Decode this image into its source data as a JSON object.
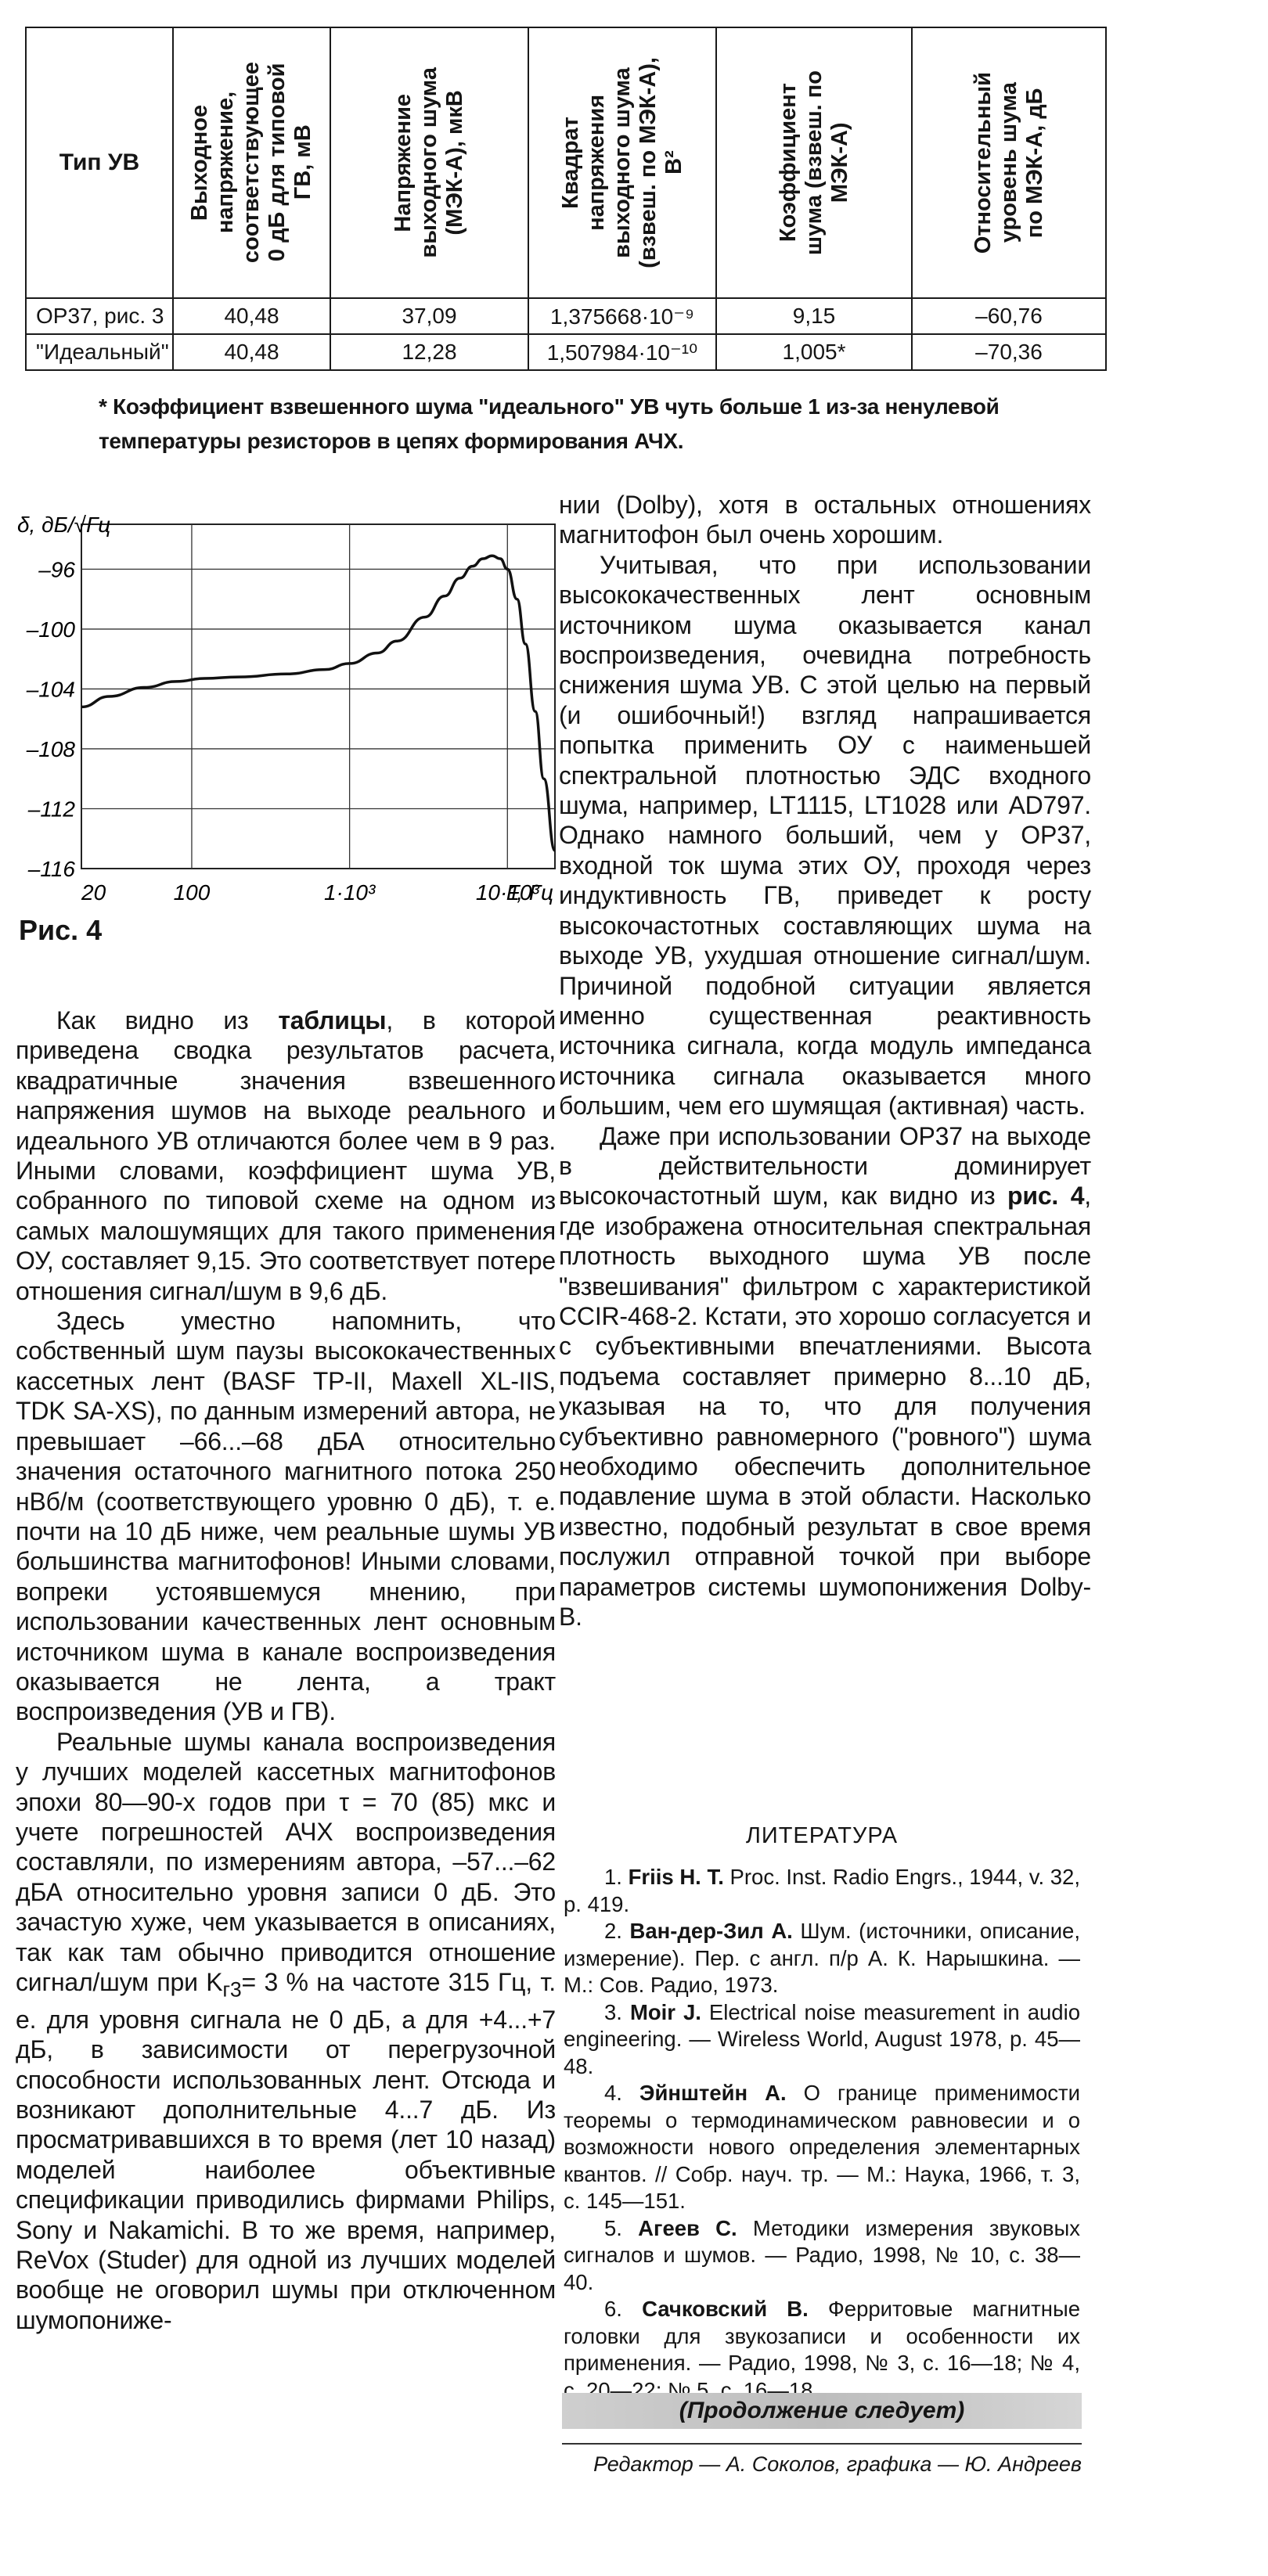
{
  "table": {
    "headers": [
      "Тип УВ",
      "Выходное\nнапряжение,\nсоответствующее\n0 дБ для типовой\nГВ, мВ",
      "Напряжение\nвыходного шума\n(МЭК-А), мкВ",
      "Квадрат\nнапряжения\nвыходного шума\n(взвеш. по МЭК-А),\nВ²",
      "Коэффициент\nшума (взвеш. по\nМЭК-А)",
      "Относительный\nуровень шума\nпо МЭК-А, дБ"
    ],
    "rows": [
      [
        "OP37, рис. 3",
        "40,48",
        "37,09",
        "1,375668·10⁻⁹",
        "9,15",
        "–60,76"
      ],
      [
        "\"Идеальный\"",
        "40,48",
        "12,28",
        "1,507984·10⁻¹⁰",
        "1,005*",
        "–70,36"
      ]
    ],
    "footnote": "* Коэффициент взвешенного шума \"идеального\" УВ чуть больше 1 из-за ненулевой температуры резисторов в цепях формирования АЧХ."
  },
  "figure": {
    "caption": "Рис. 4"
  },
  "chart_data": {
    "type": "line",
    "ylabel": "δ, дБ/√Гц",
    "xlabel": "F, Гц",
    "x_scale": "log",
    "x_ticks": [
      "20",
      "100",
      "1·10³",
      "10·10³"
    ],
    "x_tick_values": [
      20,
      100,
      1000,
      10000
    ],
    "y_ticks": [
      "–96",
      "–100",
      "–104",
      "–108",
      "–112",
      "–116"
    ],
    "y_tick_values": [
      -96,
      -100,
      -104,
      -108,
      -112,
      -116
    ],
    "xlim": [
      20,
      20000
    ],
    "ylim": [
      -116,
      -93
    ],
    "grid": true,
    "series": [
      {
        "x": [
          20,
          30,
          50,
          80,
          120,
          200,
          400,
          700,
          1000,
          1500,
          2000,
          3000,
          4000,
          5000,
          6000,
          7000,
          8000,
          9000,
          10000,
          11500,
          13000,
          15000,
          17000,
          20000
        ],
        "y": [
          -105.2,
          -104.5,
          -103.9,
          -103.5,
          -103.3,
          -103.2,
          -103.0,
          -102.7,
          -102.3,
          -101.6,
          -100.8,
          -99.2,
          -97.8,
          -96.6,
          -95.8,
          -95.3,
          -95.1,
          -95.3,
          -96.0,
          -98.0,
          -101.0,
          -105.5,
          -110.0,
          -114.8
        ]
      }
    ]
  },
  "columns": {
    "right_top": [
      {
        "cont": true,
        "html": "нии (Dolby), хотя в остальных отношениях магнитофон был очень хорошим."
      },
      {
        "cont": false,
        "html": "Учитывая, что при использовании высококачественных лент основным источником шума оказывается канал воспроизведения, очевидна потребность снижения шума УВ. С этой целью на первый (и ошибочный!) взгляд напрашивается попытка применить ОУ с наименьшей спектральной плотностью ЭДС входного шума, например, LT1115, LT1028 или AD797. Однако намного больший, чем у OP37, входной ток шума этих ОУ, проходя через индуктивность ГВ, приведет к росту высокочастотных составляющих шума на выходе УВ, ухудшая отношение сигнал/шум. Причиной подобной ситуации является именно существенная реактивность источника сигнала, когда модуль импеданса источника сигнала оказывается много большим, чем его шумящая (активная) часть."
      },
      {
        "cont": false,
        "html": "Даже при использовании OP37 на выходе в действительности доминирует высокочастотный шум, как видно из <b>рис. 4</b>, где изображена относительная спектральная плотность выходного шума УВ после \"взвешивания\" фильтром с характеристикой CCIR-468-2. Кстати, это хорошо согласуется и с субъективными впечатлениями. Высота подъема составляет примерно 8...10 дБ, указывая на то, что для получения субъективно равномерного (\"ровного\") шума необходимо обеспечить дополнительное подавление шума в этой области. Насколько известно, подобный результат в свое время послужил отправной точкой при выборе параметров системы шумопонижения Dolby-B."
      }
    ],
    "left": [
      {
        "cont": false,
        "html": "Как видно из <b>таблицы</b>, в которой приведена сводка результатов расчета, квадратичные значения взвешенного напряжения шумов на выходе реального и идеального УВ отличаются более чем в 9 раз. Иными словами, коэффициент шума УВ, собранного по типовой схеме на одном из самых малошумящих для такого применения ОУ, составляет 9,15. Это соответствует потере отношения сигнал/шум в 9,6 дБ."
      },
      {
        "cont": false,
        "html": "Здесь уместно напомнить, что собственный шум паузы высококачественных кассетных лент (BASF TP-II, Maxell XL-IIS, TDK SA-XS), по данным измерений автора, не превышает –66...–68 дБА относительно значения остаточного магнитного потока 250 нВб/м (соответствующего уровню 0 дБ), т. е. почти на 10 дБ ниже, чем реальные шумы УВ большинства магнитофонов! Иными словами, вопреки устоявшемуся мнению, при использовании качественных лент основным источником шума в канале воспроизведения оказывается не лента, а тракт воспроизведения (УВ и ГВ)."
      },
      {
        "cont": false,
        "html": "Реальные шумы канала воспроизведения у лучших моделей кассетных магнитофонов эпохи 80—90-х годов при τ = 70 (85) мкс и учете погрешностей АЧХ воспроизведения составляли, по измерениям автора, –57...–62 дБА относительно уровня записи 0 дБ. Это зачастую хуже, чем указывается в описаниях, так как там обычно приводится отношение сигнал/шум при K<sub>г3</sub>= 3 % на частоте 315 Гц, т. е. для уровня сигнала не 0 дБ, а для +4...+7 дБ, в зависимости от перегрузочной способности использованных лент. Отсюда и возникают дополнительные 4...7 дБ. Из просматривавшихся в то время (лет 10 назад) моделей наиболее объективные спецификации приводились фирмами Philips, Sony и Nakamichi. В то же время, например, ReVox (Studer) для одной из лучших моделей вообще не оговорил шумы при отключенном шумопониже-"
      }
    ]
  },
  "literature": {
    "heading": "ЛИТЕРАТУРА",
    "refs": [
      "1. <b>Friis H. T.</b> Proc. Inst. Radio Engrs., 1944, v. 32, p. 419.",
      "2. <b>Ван-дер-Зил А.</b> Шум. (источники, описание, измерение). Пер. с англ. п/р А. К. Нарышкина. — М.: Сов. Радио, 1973.",
      "3. <b>Moir J.</b> Electrical noise measurement in audio engineering. — Wireless World, August 1978, p. 45—48.",
      "4. <b>Эйнштейн А.</b> О границе применимости теоремы о термодинамическом равновесии и о возможности нового определения элементарных квантов. // Собр. науч. тр. — М.: Наука, 1966, т. 3, с. 145—151.",
      "5. <b>Агеев С.</b> Методики измерения звуковых сигналов и шумов. — Радио, 1998, № 10, с. 38—40.",
      "6. <b>Сачковский В.</b> Ферритовые магнитные головки для звукозаписи и особенности их применения. — Радио, 1998, № 3, с. 16—18; № 4, с. 20—22; № 5, с. 16—18."
    ],
    "continued": "(Продолжение следует)",
    "editors": "Редактор — А. Соколов, графика — Ю. Андреев"
  }
}
